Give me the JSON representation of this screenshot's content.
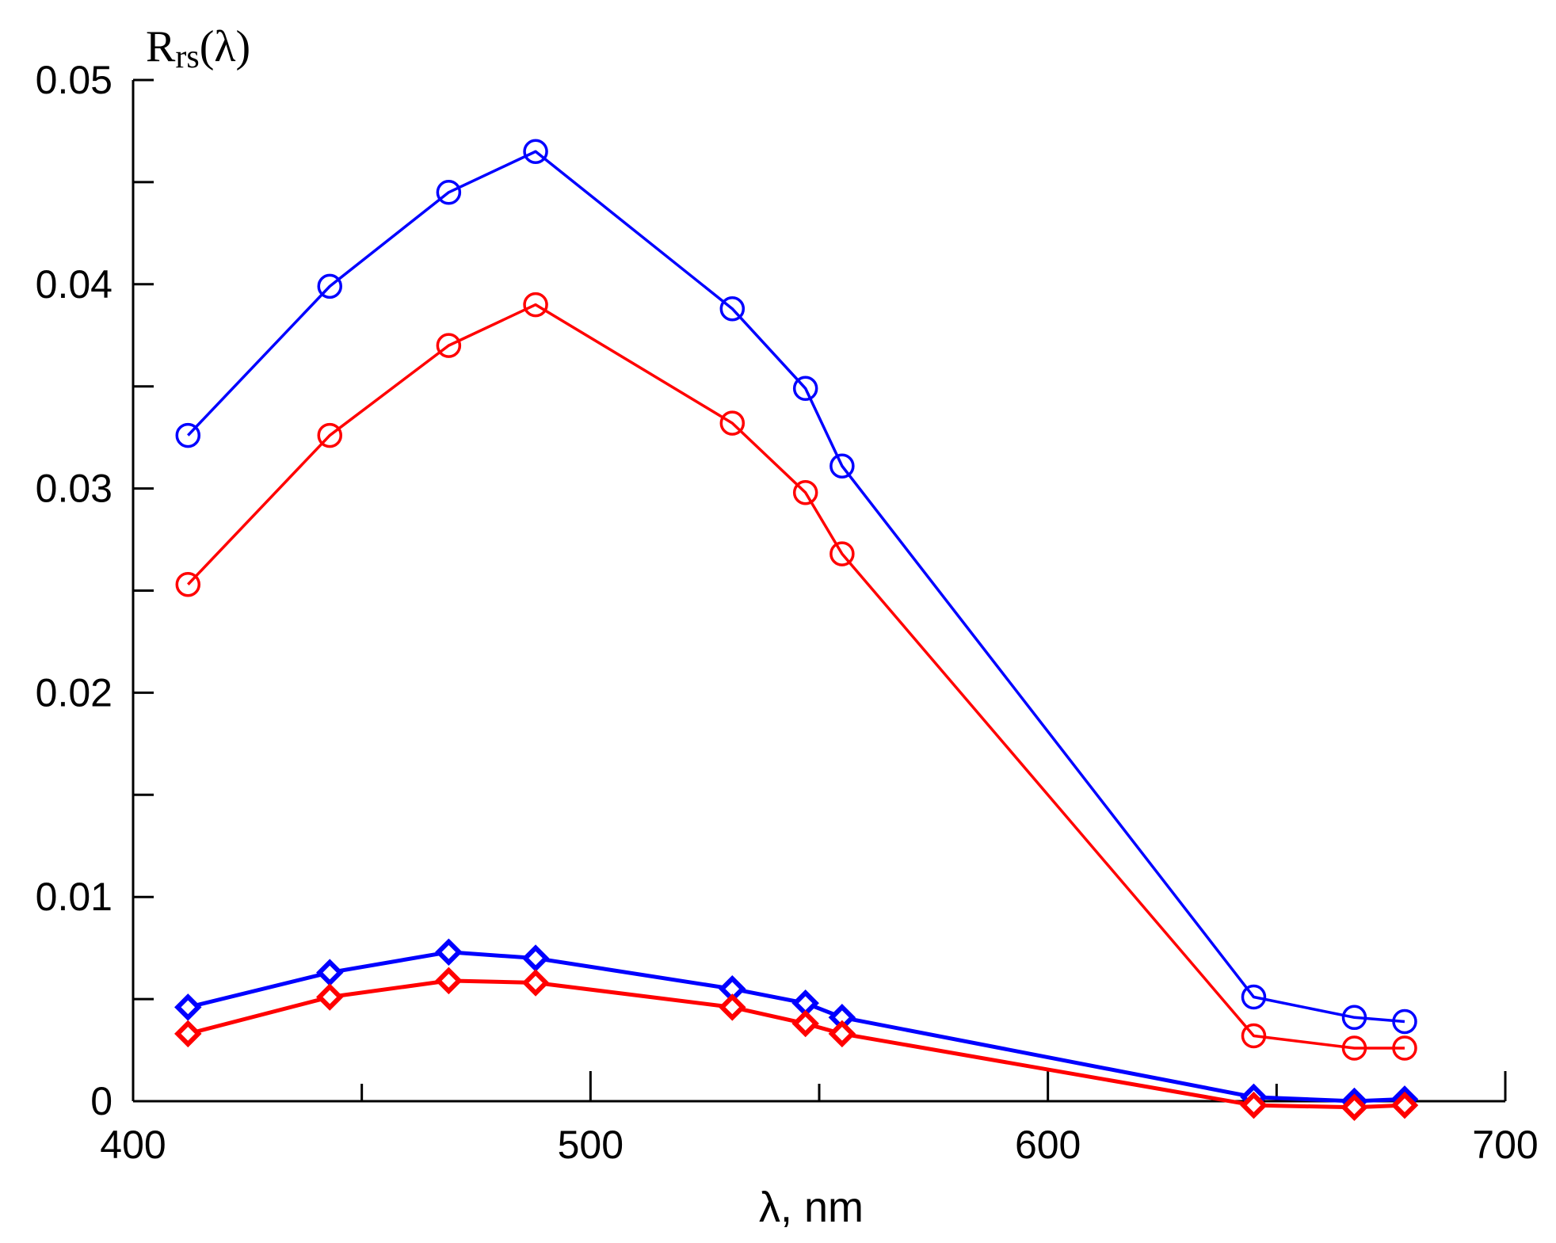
{
  "chart_data": {
    "type": "line",
    "title": "",
    "xlabel": "λ, nm",
    "ylabel": {
      "main": "R",
      "sub": "rs",
      "suffix": "(λ)"
    },
    "xlim": [
      400,
      700
    ],
    "ylim": [
      0,
      0.05
    ],
    "grid": false,
    "x_ticks": [
      400,
      500,
      600,
      700
    ],
    "x_tick_labels": [
      "400",
      "500",
      "600",
      "700"
    ],
    "x_minor_ticks": [
      450,
      550,
      650
    ],
    "y_ticks": [
      0,
      0.01,
      0.02,
      0.03,
      0.04,
      0.05
    ],
    "y_tick_labels": [
      "0",
      "0.01",
      "0.02",
      "0.03",
      "0.04",
      "0.05"
    ],
    "y_minor_ticks": [
      0.005,
      0.015,
      0.025,
      0.035,
      0.045
    ],
    "x": [
      412,
      443,
      469,
      488,
      531,
      547,
      555,
      645,
      667,
      678
    ],
    "series": [
      {
        "name": "blue-circles",
        "color": "#0000ff",
        "marker": "circle",
        "values": [
          0.0326,
          0.0399,
          0.0445,
          0.0465,
          0.0388,
          0.0349,
          0.0311,
          0.0051,
          0.0041,
          0.0039
        ]
      },
      {
        "name": "red-circles",
        "color": "#ff0000",
        "marker": "circle",
        "values": [
          0.0253,
          0.0326,
          0.037,
          0.039,
          0.0332,
          0.0298,
          0.0268,
          0.0032,
          0.0026,
          0.0026
        ]
      },
      {
        "name": "blue-diamonds",
        "color": "#0000ff",
        "marker": "diamond",
        "values": [
          0.0046,
          0.0063,
          0.0073,
          0.007,
          0.0055,
          0.0048,
          0.0041,
          0.0002,
          0.0,
          0.0001
        ]
      },
      {
        "name": "red-diamonds",
        "color": "#ff0000",
        "marker": "diamond",
        "values": [
          0.0033,
          0.0051,
          0.0059,
          0.0058,
          0.0046,
          0.0038,
          0.0033,
          -0.0002,
          -0.0003,
          -0.0002
        ]
      }
    ]
  }
}
